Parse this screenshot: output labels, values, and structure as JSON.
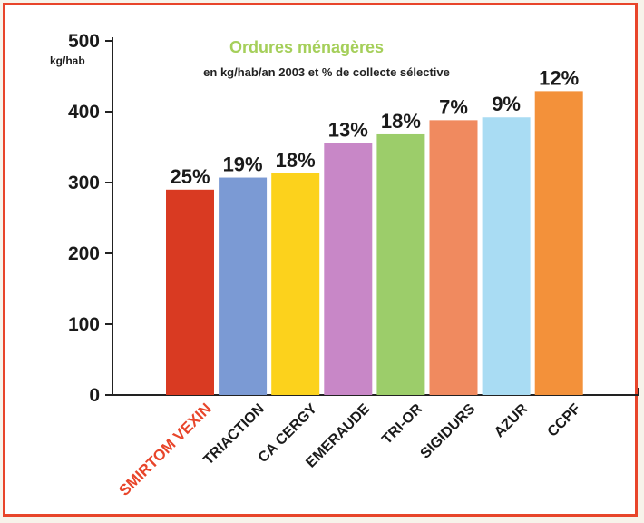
{
  "chart_data": {
    "type": "bar",
    "title": "Ordures ménagères",
    "subtitle": "en kg/hab/an 2003 et % de collecte sélective",
    "ylabel": "kg/hab",
    "ylim": [
      0,
      500
    ],
    "yticks": [
      "0",
      "100",
      "200",
      "300",
      "400",
      "500"
    ],
    "categories": [
      "SMIRTOM VEXIN",
      "TRIACTION",
      "CA CERGY",
      "EMERAUDE",
      "TRI-OR",
      "SIGIDURS",
      "AZUR",
      "CCPF"
    ],
    "values": [
      290,
      307,
      313,
      356,
      368,
      388,
      392,
      429
    ],
    "data_labels": [
      "25%",
      "19%",
      "18%",
      "13%",
      "18%",
      "7%",
      "9%",
      "12%"
    ],
    "colors": [
      "#d93a22",
      "#7b9ad4",
      "#fcd21c",
      "#c887c7",
      "#9ccd6a",
      "#f08a5f",
      "#a9dcf3",
      "#f3913a"
    ],
    "highlight_category_color": "#e8452a",
    "grid": false,
    "legend": "none"
  }
}
